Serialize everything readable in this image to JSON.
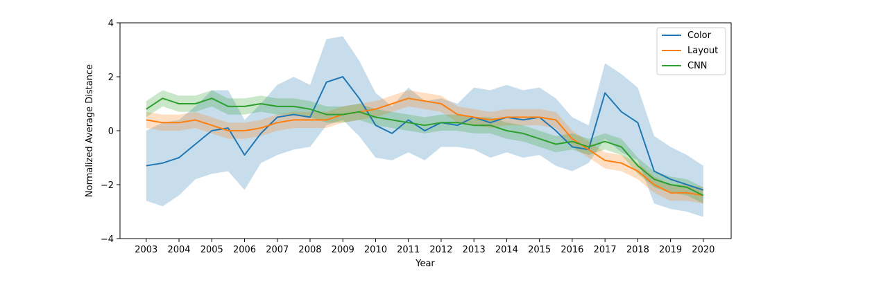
{
  "chart_data": {
    "type": "line",
    "xlabel": "Year",
    "ylabel": "Normalized Average Distance",
    "xlim": [
      2002.2,
      2020.85
    ],
    "ylim": [
      -4,
      4
    ],
    "x_ticks": [
      2003,
      2004,
      2005,
      2006,
      2007,
      2008,
      2009,
      2010,
      2011,
      2012,
      2013,
      2014,
      2015,
      2016,
      2017,
      2018,
      2019,
      2020
    ],
    "x_tick_labels": [
      "2003",
      "2004",
      "2005",
      "2006",
      "2007",
      "2008",
      "2009",
      "2010",
      "2011",
      "2012",
      "2013",
      "2014",
      "2015",
      "2016",
      "2017",
      "2018",
      "2019",
      "2020"
    ],
    "y_ticks": [
      -4,
      -2,
      0,
      2,
      4
    ],
    "y_tick_labels": [
      "−4",
      "−2",
      "0",
      "2",
      "4"
    ],
    "grid": false,
    "legend_position": "top-right",
    "legend_labels": [
      "Color",
      "Layout",
      "CNN"
    ],
    "band": "shaded band around each line",
    "series": [
      {
        "name": "Color",
        "color": "#1f77b4",
        "x": [
          2003.0,
          2003.5,
          2004.0,
          2004.5,
          2005.0,
          2005.5,
          2006.0,
          2006.5,
          2007.0,
          2007.5,
          2008.0,
          2008.5,
          2009.0,
          2009.5,
          2010.0,
          2010.5,
          2011.0,
          2011.5,
          2012.0,
          2012.5,
          2013.0,
          2013.5,
          2014.0,
          2014.5,
          2015.0,
          2015.5,
          2016.0,
          2016.5,
          2017.0,
          2017.5,
          2018.0,
          2018.5,
          2019.0,
          2019.5,
          2020.0
        ],
        "y": [
          -1.3,
          -1.2,
          -1.0,
          -0.5,
          0.0,
          0.1,
          -0.9,
          -0.1,
          0.5,
          0.6,
          0.5,
          1.8,
          2.0,
          1.2,
          0.2,
          -0.1,
          0.4,
          0.0,
          0.3,
          0.2,
          0.5,
          0.3,
          0.5,
          0.4,
          0.5,
          0.0,
          -0.6,
          -0.7,
          1.4,
          0.7,
          0.3,
          -1.5,
          -1.8,
          -2.0,
          -2.2
        ],
        "lower": [
          -2.6,
          -2.8,
          -2.4,
          -1.8,
          -1.6,
          -1.5,
          -2.2,
          -1.2,
          -0.9,
          -0.7,
          -0.6,
          0.2,
          0.4,
          -0.2,
          -1.0,
          -1.1,
          -0.8,
          -1.1,
          -0.6,
          -0.6,
          -0.7,
          -1.0,
          -0.8,
          -1.0,
          -0.9,
          -1.3,
          -1.5,
          -1.2,
          -0.3,
          -0.8,
          -1.1,
          -2.7,
          -2.9,
          -3.0,
          -3.2
        ],
        "upper": [
          0.0,
          0.3,
          0.4,
          0.9,
          1.5,
          1.5,
          0.4,
          1.0,
          1.7,
          2.0,
          1.7,
          3.4,
          3.5,
          2.6,
          1.4,
          0.9,
          1.6,
          1.1,
          1.2,
          1.0,
          1.6,
          1.5,
          1.7,
          1.5,
          1.6,
          1.2,
          0.5,
          0.2,
          2.5,
          2.1,
          1.6,
          -0.2,
          -0.6,
          -0.9,
          -1.3
        ]
      },
      {
        "name": "Layout",
        "color": "#ff7f0e",
        "x": [
          2003.0,
          2003.5,
          2004.0,
          2004.5,
          2005.0,
          2005.5,
          2006.0,
          2006.5,
          2007.0,
          2007.5,
          2008.0,
          2008.5,
          2009.0,
          2009.5,
          2010.0,
          2010.5,
          2011.0,
          2011.5,
          2012.0,
          2012.5,
          2013.0,
          2013.5,
          2014.0,
          2014.5,
          2015.0,
          2015.5,
          2016.0,
          2016.5,
          2017.0,
          2017.5,
          2018.0,
          2018.5,
          2019.0,
          2019.5,
          2020.0
        ],
        "y": [
          0.4,
          0.3,
          0.3,
          0.4,
          0.2,
          0.0,
          0.0,
          0.1,
          0.3,
          0.4,
          0.4,
          0.4,
          0.6,
          0.7,
          0.8,
          1.0,
          1.2,
          1.1,
          1.0,
          0.6,
          0.5,
          0.4,
          0.5,
          0.5,
          0.5,
          0.4,
          -0.3,
          -0.7,
          -1.1,
          -1.2,
          -1.5,
          -2.0,
          -2.3,
          -2.3,
          -2.4
        ],
        "lower": [
          0.1,
          0.0,
          0.0,
          0.1,
          -0.1,
          -0.3,
          -0.3,
          -0.2,
          0.0,
          0.1,
          0.1,
          0.1,
          0.3,
          0.4,
          0.5,
          0.7,
          0.9,
          0.8,
          0.7,
          0.3,
          0.2,
          0.1,
          0.2,
          0.2,
          0.2,
          0.1,
          -0.6,
          -1.0,
          -1.4,
          -1.5,
          -1.8,
          -2.3,
          -2.6,
          -2.6,
          -2.7
        ],
        "upper": [
          0.7,
          0.6,
          0.6,
          0.7,
          0.5,
          0.3,
          0.3,
          0.4,
          0.6,
          0.7,
          0.7,
          0.7,
          0.9,
          1.0,
          1.1,
          1.3,
          1.5,
          1.4,
          1.3,
          0.9,
          0.8,
          0.7,
          0.8,
          0.8,
          0.8,
          0.7,
          0.0,
          -0.4,
          -0.8,
          -0.9,
          -1.2,
          -1.7,
          -2.0,
          -2.0,
          -2.1
        ]
      },
      {
        "name": "CNN",
        "color": "#2ca02c",
        "x": [
          2003.0,
          2003.5,
          2004.0,
          2004.5,
          2005.0,
          2005.5,
          2006.0,
          2006.5,
          2007.0,
          2007.5,
          2008.0,
          2008.5,
          2009.0,
          2009.5,
          2010.0,
          2010.5,
          2011.0,
          2011.5,
          2012.0,
          2012.5,
          2013.0,
          2013.5,
          2014.0,
          2014.5,
          2015.0,
          2015.5,
          2016.0,
          2016.5,
          2017.0,
          2017.5,
          2018.0,
          2018.5,
          2019.0,
          2019.5,
          2020.0
        ],
        "y": [
          0.8,
          1.2,
          1.0,
          1.0,
          1.2,
          0.9,
          0.9,
          1.0,
          0.9,
          0.9,
          0.8,
          0.6,
          0.6,
          0.7,
          0.5,
          0.4,
          0.3,
          0.2,
          0.3,
          0.3,
          0.2,
          0.2,
          0.0,
          -0.1,
          -0.3,
          -0.5,
          -0.4,
          -0.6,
          -0.4,
          -0.6,
          -1.3,
          -1.8,
          -2.0,
          -2.1,
          -2.4
        ],
        "lower": [
          0.5,
          0.9,
          0.7,
          0.7,
          0.9,
          0.6,
          0.6,
          0.7,
          0.6,
          0.6,
          0.5,
          0.3,
          0.3,
          0.4,
          0.2,
          0.1,
          0.0,
          -0.1,
          0.0,
          0.0,
          -0.1,
          -0.1,
          -0.3,
          -0.4,
          -0.6,
          -0.8,
          -0.7,
          -0.9,
          -0.7,
          -0.9,
          -1.6,
          -2.1,
          -2.3,
          -2.4,
          -2.7
        ],
        "upper": [
          1.1,
          1.5,
          1.3,
          1.3,
          1.5,
          1.2,
          1.2,
          1.3,
          1.2,
          1.2,
          1.1,
          0.9,
          0.9,
          1.0,
          0.8,
          0.7,
          0.6,
          0.5,
          0.6,
          0.6,
          0.5,
          0.5,
          0.3,
          0.2,
          0.0,
          -0.2,
          -0.1,
          -0.3,
          -0.1,
          -0.3,
          -1.0,
          -1.5,
          -1.7,
          -1.8,
          -2.1
        ]
      }
    ]
  }
}
